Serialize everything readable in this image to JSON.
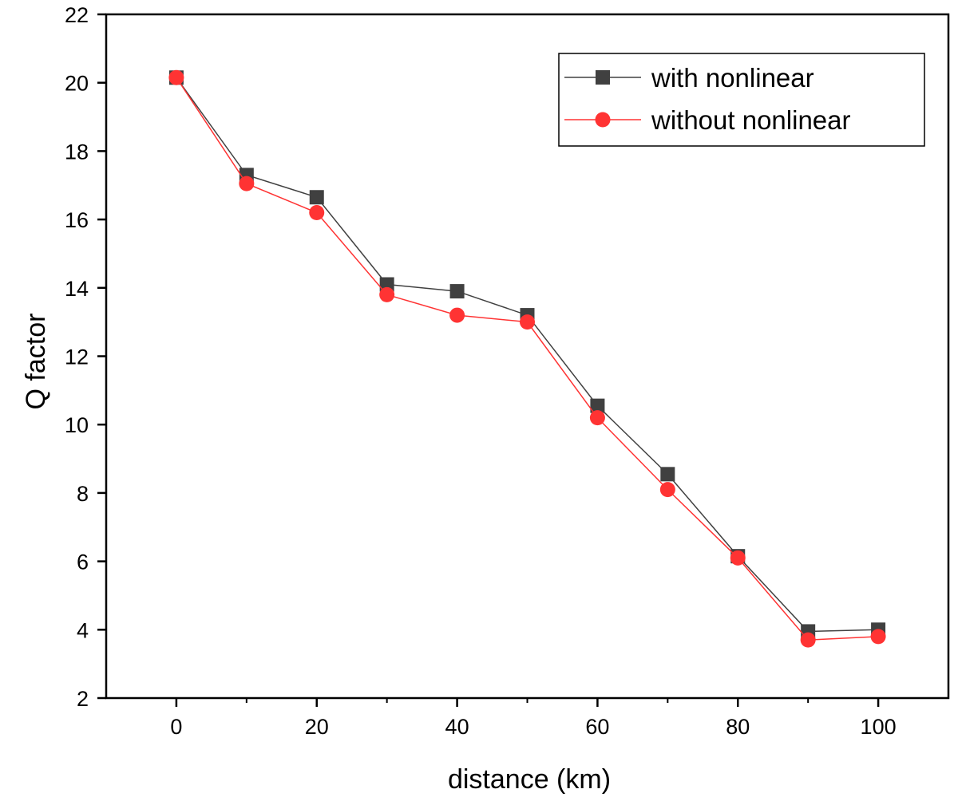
{
  "chart_data": {
    "type": "line",
    "xlabel": "distance (km)",
    "ylabel": "Q factor",
    "xlim": [
      -10,
      110
    ],
    "ylim": [
      2,
      22
    ],
    "x_ticks": [
      0,
      20,
      40,
      60,
      80,
      100
    ],
    "y_ticks": [
      2,
      4,
      6,
      8,
      10,
      12,
      14,
      16,
      18,
      20,
      22
    ],
    "x": [
      0,
      10,
      20,
      30,
      40,
      50,
      60,
      70,
      80,
      90,
      100
    ],
    "series": [
      {
        "name": "with nonlinear",
        "color": "#404040",
        "marker": "square",
        "values": [
          20.15,
          17.3,
          16.65,
          14.1,
          13.9,
          13.2,
          10.55,
          8.55,
          6.15,
          3.95,
          4.0
        ]
      },
      {
        "name": "without nonlinear",
        "color": "#ff3333",
        "marker": "circle",
        "values": [
          20.15,
          17.05,
          16.2,
          13.8,
          13.2,
          13.0,
          10.2,
          8.1,
          6.1,
          3.7,
          3.8
        ]
      }
    ],
    "grid": false,
    "legend_position": "top-right"
  }
}
